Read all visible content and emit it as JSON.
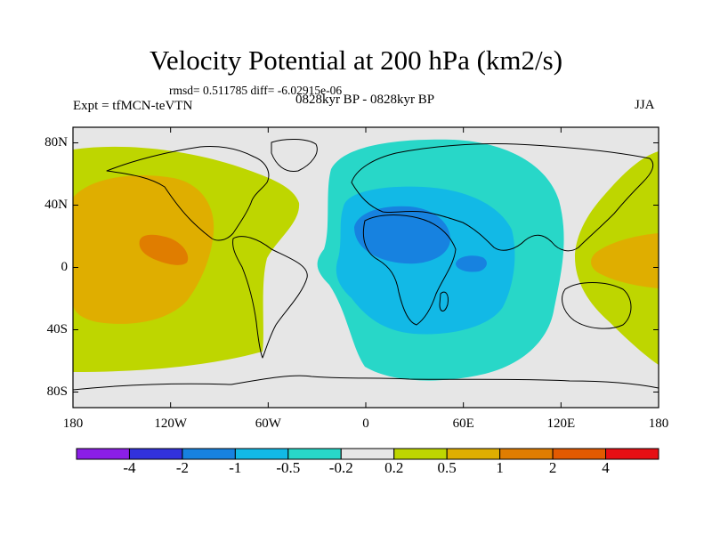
{
  "header": {
    "title": "Velocity Potential at 200 hPa (km2/s)",
    "stats": "rmsd= 0.511785 diff= -6.02915e-06",
    "experiment": "Expt = tfMCN-teVTN",
    "period": "0828kyr BP - 0828kyr BP",
    "season": "JJA"
  },
  "map": {
    "projection": "cylindrical-equidistant",
    "lon_range": [
      -180,
      180
    ],
    "lat_range": [
      -90,
      90
    ],
    "x_ticks": [
      {
        "lon": -180,
        "label": "180"
      },
      {
        "lon": -120,
        "label": "120W"
      },
      {
        "lon": -60,
        "label": "60W"
      },
      {
        "lon": 0,
        "label": "0"
      },
      {
        "lon": 60,
        "label": "60E"
      },
      {
        "lon": 120,
        "label": "120E"
      },
      {
        "lon": 180,
        "label": "180"
      }
    ],
    "y_ticks": [
      {
        "lat": 80,
        "label": "80N"
      },
      {
        "lat": 40,
        "label": "40N"
      },
      {
        "lat": 0,
        "label": "0"
      },
      {
        "lat": -40,
        "label": "40S"
      },
      {
        "lat": -80,
        "label": "80S"
      }
    ],
    "background_color": "#e6e6e6",
    "regions": [
      {
        "name": "pacific-positive-outer",
        "level": "0.2 to 0.5",
        "color": "#bed600"
      },
      {
        "name": "pacific-positive-middle",
        "level": "0.5 to 1",
        "color": "#dfae00"
      },
      {
        "name": "pacific-positive-core",
        "level": "1 to 2",
        "color": "#e07d00"
      },
      {
        "name": "atlantic-negative-outer",
        "level": "-0.5 to -0.2",
        "color": "#28d7c8"
      },
      {
        "name": "africa-negative-middle",
        "level": "-1 to -0.5",
        "color": "#12b9e6"
      },
      {
        "name": "africa-negative-core",
        "level": "-2 to -1",
        "color": "#1782e0"
      },
      {
        "name": "indo-pacific-positive-outer",
        "level": "0.2 to 0.5",
        "color": "#bed600"
      },
      {
        "name": "indo-pacific-positive-core",
        "level": "0.5 to 1",
        "color": "#dfae00"
      }
    ]
  },
  "colorbar": {
    "colors": [
      "#8b1ee6",
      "#3232dc",
      "#1782e0",
      "#12b9e6",
      "#28d7c8",
      "#e6e6e6",
      "#bed600",
      "#dfae00",
      "#e07d00",
      "#e25a00",
      "#e60f14"
    ],
    "labels": [
      "-4",
      "-2",
      "-1",
      "-0.5",
      "-0.2",
      "0.2",
      "0.5",
      "1",
      "2",
      "4"
    ]
  }
}
